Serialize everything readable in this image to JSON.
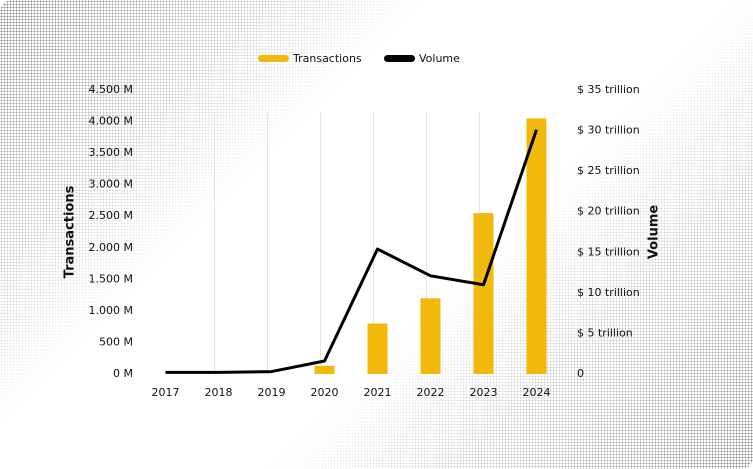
{
  "chart_data": {
    "type": "combo",
    "categories": [
      "2017",
      "2018",
      "2019",
      "2020",
      "2021",
      "2022",
      "2023",
      "2024"
    ],
    "series": [
      {
        "name": "Transactions",
        "type": "bar",
        "color": "#f0b90b",
        "values": [
          0,
          0,
          0,
          130,
          800,
          1200,
          2550,
          4050
        ]
      },
      {
        "name": "Volume",
        "type": "line",
        "color": "#000000",
        "axis": "y2",
        "values": [
          0.2,
          0.2,
          0.3,
          1.6,
          15.4,
          12.1,
          11.0,
          30.1
        ]
      }
    ],
    "ylabel": "Transactions",
    "y2label": "Volume",
    "ylim": [
      0,
      4500
    ],
    "yticks": [
      {
        "value": 0,
        "label": "0 M"
      },
      {
        "value": 500,
        "label": "500 M"
      },
      {
        "value": 1000,
        "label": "1.000 M"
      },
      {
        "value": 1500,
        "label": "1.500 M"
      },
      {
        "value": 2000,
        "label": "2.000 M"
      },
      {
        "value": 2500,
        "label": "2.500 M"
      },
      {
        "value": 3000,
        "label": "3.000 M"
      },
      {
        "value": 3500,
        "label": "3.500 M"
      },
      {
        "value": 4000,
        "label": "4.000 M"
      },
      {
        "value": 4500,
        "label": "4.500 M"
      }
    ],
    "y2lim": [
      0,
      35
    ],
    "y2ticks": [
      0,
      {
        "value": 5,
        "label": "$ 5 trillion"
      },
      {
        "value": 10,
        "label": "$ 10 trillion"
      },
      {
        "value": 15,
        "label": "$ 15 trillion"
      },
      {
        "value": 20,
        "label": "$ 20 trillion"
      },
      {
        "value": 25,
        "label": "$ 25 trillion"
      },
      {
        "value": 30,
        "label": "$ 30 trillion"
      },
      {
        "value": 35,
        "label": "$ 35 trillion"
      }
    ],
    "legend": "top"
  }
}
